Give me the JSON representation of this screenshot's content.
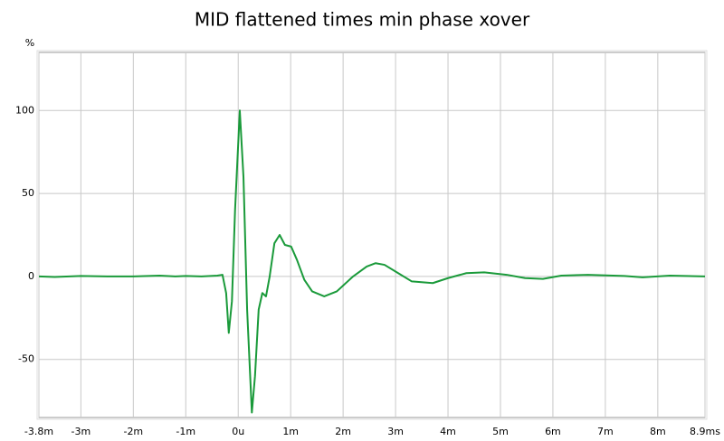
{
  "chart_data": {
    "type": "line",
    "title": "MID flattened times min phase xover",
    "ylabel": "%",
    "x": [
      -3.8,
      -3.5,
      -3.0,
      -2.5,
      -2.0,
      -1.5,
      -1.2,
      -1.0,
      -0.7,
      -0.4,
      -0.3,
      -0.23,
      -0.18,
      -0.12,
      -0.06,
      0.03,
      0.1,
      0.17,
      0.26,
      0.32,
      0.39,
      0.46,
      0.53,
      0.6,
      0.69,
      0.79,
      0.89,
      1.01,
      1.12,
      1.26,
      1.41,
      1.64,
      1.88,
      2.19,
      2.45,
      2.62,
      2.79,
      3.05,
      3.31,
      3.71,
      4.0,
      4.35,
      4.69,
      5.12,
      5.47,
      5.81,
      6.16,
      6.67,
      7.36,
      7.71,
      8.23,
      8.9
    ],
    "series": [
      {
        "name": "MID flattened times min phase xover",
        "color": "#1a9a3a",
        "values": [
          0,
          -0.3,
          0.3,
          0,
          0,
          0.5,
          0,
          0.3,
          0,
          0.5,
          1,
          -10,
          -34,
          -15,
          40,
          100,
          60,
          -20,
          -82,
          -60,
          -20,
          -10,
          -12,
          0,
          20,
          25,
          19,
          18,
          10,
          -2,
          -9,
          -12,
          -9,
          0,
          6,
          8,
          7,
          2,
          -3,
          -4,
          -1,
          2,
          2.5,
          1,
          -1,
          -1.5,
          0.5,
          1,
          0.3,
          -0.5,
          0.5,
          0
        ]
      }
    ],
    "xlim": [
      -3.8,
      8.9
    ],
    "xticks": [
      {
        "value": -3.8,
        "label": "-3.8m"
      },
      {
        "value": -3,
        "label": "-3m"
      },
      {
        "value": -2,
        "label": "-2m"
      },
      {
        "value": -1,
        "label": "-1m"
      },
      {
        "value": 0,
        "label": "0u"
      },
      {
        "value": 1,
        "label": "1m"
      },
      {
        "value": 2,
        "label": "2m"
      },
      {
        "value": 3,
        "label": "3m"
      },
      {
        "value": 4,
        "label": "4m"
      },
      {
        "value": 5,
        "label": "5m"
      },
      {
        "value": 6,
        "label": "6m"
      },
      {
        "value": 7,
        "label": "7m"
      },
      {
        "value": 8,
        "label": "8m"
      },
      {
        "value": 8.9,
        "label": "8.9ms"
      }
    ],
    "ylim": [
      -85,
      135
    ],
    "yticks": [
      -50,
      0,
      50,
      100
    ],
    "grid": true
  }
}
